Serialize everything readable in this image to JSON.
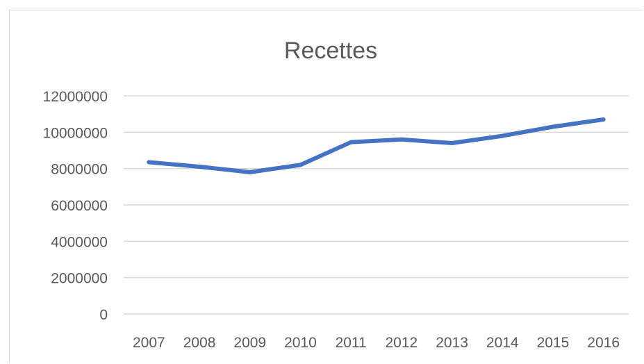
{
  "chart_data": {
    "type": "line",
    "title": "Recettes",
    "xlabel": "",
    "ylabel": "",
    "x": [
      "2007",
      "2008",
      "2009",
      "2010",
      "2011",
      "2012",
      "2013",
      "2014",
      "2015",
      "2016"
    ],
    "series": [
      {
        "values": [
          8350000,
          8100000,
          7800000,
          8200000,
          9450000,
          9600000,
          9400000,
          9800000,
          10300000,
          10700000
        ]
      }
    ],
    "ylim": [
      0,
      12000000
    ],
    "yticks": [
      0,
      2000000,
      4000000,
      6000000,
      8000000,
      10000000,
      12000000
    ],
    "ytick_labels": [
      "0",
      "2000000",
      "4000000",
      "6000000",
      "8000000",
      "10000000",
      "12000000"
    ],
    "grid": true,
    "legend": "none",
    "colors": {
      "series": "#4472c4",
      "grid": "#d9d9d9",
      "text": "#595959"
    }
  }
}
